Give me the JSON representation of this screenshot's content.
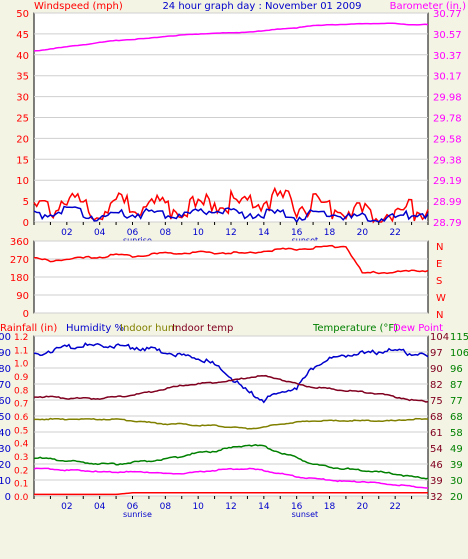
{
  "chart_data": [
    {
      "type": "line",
      "title": "24 hour graph day : November 01 2009",
      "ylabel_left": "Windspeed (mph)",
      "ylabel_right": "Barometer (in.)",
      "x": [
        0,
        1,
        2,
        3,
        4,
        5,
        6,
        7,
        8,
        9,
        10,
        11,
        12,
        13,
        14,
        15,
        16,
        17,
        18,
        19,
        20,
        21,
        22,
        23,
        24
      ],
      "x_ticks": [
        "02",
        "04",
        "06",
        "08",
        "10",
        "12",
        "14",
        "16",
        "18",
        "20",
        "22"
      ],
      "annotations": [
        "sunrise",
        "sunset"
      ],
      "ylim_left": [
        0,
        50
      ],
      "y_ticks_left": [
        "0",
        "5",
        "10",
        "15",
        "20",
        "25",
        "30",
        "35",
        "40",
        "45",
        "50"
      ],
      "ylim_right": [
        28.79,
        30.77
      ],
      "y_ticks_right": [
        "28.79",
        "28.99",
        "29.19",
        "29.38",
        "29.58",
        "29.78",
        "29.98",
        "30.17",
        "30.37",
        "30.57",
        "30.77"
      ],
      "series": [
        {
          "name": "Windspeed (mph)",
          "color": "#ff0000",
          "axis": "left",
          "values": [
            3,
            3,
            6,
            4,
            3,
            4,
            4,
            5,
            3,
            4,
            3,
            5,
            5,
            4,
            5,
            5,
            4,
            4,
            3,
            3,
            2,
            2,
            2,
            3,
            3
          ]
        },
        {
          "name": "Wind avg",
          "color": "#0000cc",
          "axis": "left",
          "values": [
            2,
            2,
            3,
            2,
            1,
            2,
            2,
            2,
            2,
            2,
            2,
            3,
            2,
            2,
            2,
            2,
            1,
            2,
            2,
            1,
            1,
            1,
            1,
            2,
            2
          ]
        },
        {
          "name": "Barometer (in.)",
          "color": "#ff00ff",
          "axis": "right",
          "values": [
            30.41,
            30.43,
            30.45,
            30.47,
            30.49,
            30.51,
            30.52,
            30.53,
            30.55,
            30.56,
            30.57,
            30.58,
            30.58,
            30.59,
            30.6,
            30.62,
            30.63,
            30.65,
            30.66,
            30.66,
            30.67,
            30.67,
            30.67,
            30.66,
            30.66
          ]
        }
      ]
    },
    {
      "type": "line",
      "y_ticks_left": [
        "0",
        "90",
        "180",
        "270",
        "360"
      ],
      "ylim_left": [
        0,
        360
      ],
      "right_labels": [
        "N",
        "W",
        "S",
        "E",
        "N"
      ],
      "series": [
        {
          "name": "Wind direction",
          "color": "#ff0000",
          "values": [
            272,
            262,
            268,
            275,
            280,
            290,
            285,
            292,
            298,
            300,
            305,
            300,
            302,
            298,
            310,
            318,
            320,
            325,
            332,
            335,
            200,
            202,
            205,
            208,
            212
          ]
        }
      ]
    },
    {
      "type": "line",
      "legend_left": [
        "Rainfall (in)",
        "Humidity %",
        "Indoor hum",
        "Indoor temp"
      ],
      "legend_right": [
        "Temperature (°F)",
        "Dew Point"
      ],
      "x_ticks": [
        "02",
        "04",
        "06",
        "08",
        "10",
        "12",
        "14",
        "16",
        "18",
        "20",
        "22"
      ],
      "annotations": [
        "sunrise",
        "sunset"
      ],
      "y_ticks_left_outer": [
        "0",
        "10",
        "20",
        "30",
        "40",
        "50",
        "60",
        "70",
        "80",
        "90",
        "100"
      ],
      "y_ticks_left_inner": [
        "0.0",
        "0.1",
        "0.2",
        "0.3",
        "0.4",
        "0.5",
        "0.6",
        "0.7",
        "0.8",
        "0.9",
        "1.0",
        "1.1",
        "1.2"
      ],
      "y_ticks_right_inner": [
        "32",
        "39",
        "46",
        "54",
        "61",
        "68",
        "75",
        "82",
        "90",
        "97",
        "104"
      ],
      "y_ticks_right_outer": [
        "20",
        "30",
        "39",
        "49",
        "58",
        "68",
        "77",
        "87",
        "96",
        "106",
        "115"
      ],
      "series": [
        {
          "name": "Rainfall (in)",
          "color": "#ff0000",
          "axis": "left_outer",
          "values": [
            1,
            1,
            1,
            1,
            1,
            1,
            2,
            2,
            2,
            2,
            2,
            2,
            2,
            2,
            2,
            2,
            2,
            2,
            2,
            2,
            2,
            2,
            2,
            2,
            2
          ]
        },
        {
          "name": "Humidity %",
          "color": "#0000cc",
          "axis": "left_outer",
          "values": [
            88,
            91,
            93,
            94,
            94,
            94,
            93,
            92,
            90,
            88,
            86,
            82,
            74,
            65,
            60,
            64,
            68,
            80,
            86,
            88,
            89,
            90,
            91,
            89,
            87
          ]
        },
        {
          "name": "Indoor hum",
          "color": "#808000",
          "axis": "left_outer",
          "values": [
            48,
            48,
            48,
            48,
            48,
            48,
            47,
            46,
            45,
            45,
            44,
            44,
            43,
            42,
            43,
            45,
            46,
            47,
            47,
            47,
            47,
            47,
            47,
            48,
            48
          ]
        },
        {
          "name": "Indoor temp",
          "color": "#800020",
          "axis": "left_outer",
          "values": [
            62,
            62,
            61,
            61,
            61,
            62,
            63,
            65,
            67,
            69,
            70,
            71,
            72,
            74,
            75,
            73,
            70,
            68,
            67,
            66,
            65,
            64,
            62,
            60,
            59
          ]
        },
        {
          "name": "Temperature (°F)",
          "color": "#008000",
          "axis": "left_outer",
          "values": [
            24,
            23,
            22,
            21,
            20,
            20,
            21,
            22,
            23,
            25,
            27,
            28,
            30,
            32,
            31,
            27,
            24,
            20,
            18,
            17,
            16,
            15,
            14,
            12,
            11
          ]
        },
        {
          "name": "Dew Point",
          "color": "#ff00ff",
          "axis": "left_outer",
          "values": [
            17,
            17,
            16,
            16,
            15,
            15,
            15,
            15,
            14,
            14,
            15,
            16,
            17,
            17,
            16,
            14,
            12,
            11,
            10,
            9,
            9,
            8,
            7,
            6,
            5
          ]
        }
      ]
    }
  ]
}
